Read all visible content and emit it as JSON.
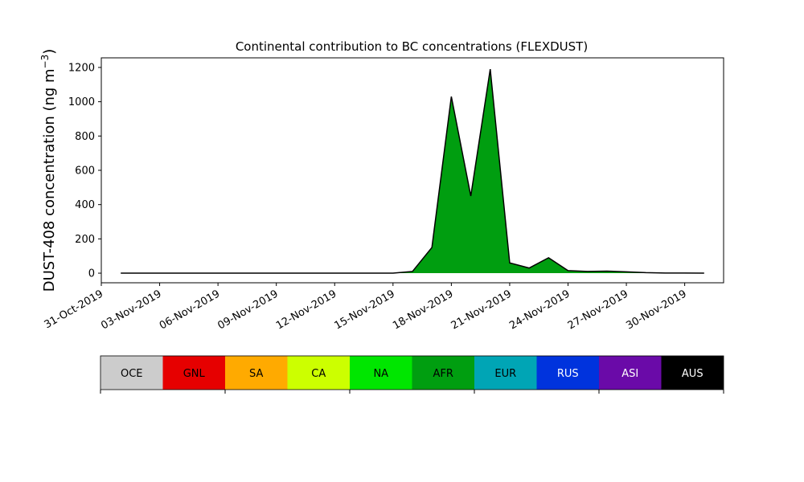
{
  "chart_data": {
    "type": "stacked_area",
    "title": "Continental contribution to BC concentrations (FLEXDUST)",
    "ylabel": {
      "text": "DUST-408 concentration (ng m",
      "superscript": "−3",
      "suffix": ")"
    },
    "x": [
      "2019-11-01",
      "2019-11-02",
      "2019-11-03",
      "2019-11-04",
      "2019-11-05",
      "2019-11-06",
      "2019-11-07",
      "2019-11-08",
      "2019-11-09",
      "2019-11-10",
      "2019-11-11",
      "2019-11-12",
      "2019-11-13",
      "2019-11-14",
      "2019-11-15",
      "2019-11-16",
      "2019-11-17",
      "2019-11-18",
      "2019-11-19",
      "2019-11-20",
      "2019-11-21",
      "2019-11-22",
      "2019-11-23",
      "2019-11-24",
      "2019-11-25",
      "2019-11-26",
      "2019-11-27",
      "2019-11-28",
      "2019-11-29",
      "2019-11-30",
      "2019-12-01"
    ],
    "series": [
      {
        "name": "OCE",
        "color": "#cccccc",
        "values": [
          0,
          0,
          0,
          0,
          0,
          0,
          0,
          0,
          0,
          0,
          0,
          0,
          0,
          0,
          0,
          0,
          0,
          0,
          0,
          0,
          0,
          0,
          0,
          0,
          0,
          0,
          0,
          0,
          0,
          0,
          0
        ]
      },
      {
        "name": "GNL",
        "color": "#e60000",
        "values": [
          0,
          0,
          0,
          0,
          0,
          0,
          0,
          0,
          0,
          0,
          0,
          0,
          0,
          0,
          0,
          0,
          0,
          0,
          0,
          0,
          0,
          0,
          0,
          0,
          0,
          0,
          0,
          0,
          0,
          0,
          0
        ]
      },
      {
        "name": "SA",
        "color": "#ffaa00",
        "values": [
          0,
          0,
          0,
          0,
          0,
          0,
          0,
          0,
          0,
          0,
          0,
          0,
          0,
          0,
          0,
          0,
          0,
          0,
          0,
          0,
          0,
          0,
          0,
          0,
          0,
          0,
          0,
          0,
          0,
          0,
          0
        ]
      },
      {
        "name": "CA",
        "color": "#ccff00",
        "values": [
          0,
          0,
          0,
          0,
          0,
          0,
          0,
          0,
          0,
          0,
          0,
          0,
          0,
          0,
          0,
          0,
          0,
          0,
          0,
          0,
          0,
          0,
          0,
          0,
          0,
          0,
          0,
          0,
          0,
          0,
          0
        ]
      },
      {
        "name": "NA",
        "color": "#00e600",
        "values": [
          0,
          0,
          0,
          0,
          0,
          0,
          0,
          0,
          0,
          0,
          0,
          0,
          0,
          0,
          0,
          0,
          0,
          0,
          0,
          0,
          0,
          0,
          0,
          0,
          0,
          0,
          0,
          0,
          0,
          0,
          0
        ]
      },
      {
        "name": "AFR",
        "color": "#009e10",
        "values": [
          0,
          0,
          0,
          0,
          0,
          0,
          0,
          0,
          0,
          0,
          0,
          0,
          0,
          0,
          0,
          10,
          150,
          1030,
          450,
          1190,
          60,
          30,
          90,
          15,
          10,
          12,
          8,
          3,
          1,
          1,
          0
        ]
      },
      {
        "name": "EUR",
        "color": "#00a5b5",
        "values": [
          0,
          0,
          0,
          0,
          0,
          0,
          0,
          0,
          0,
          0,
          0,
          0,
          0,
          0,
          0,
          0,
          0,
          0,
          0,
          0,
          0,
          0,
          0,
          0,
          0,
          0,
          0,
          0,
          0,
          0,
          0
        ]
      },
      {
        "name": "RUS",
        "color": "#0033dd",
        "values": [
          0,
          0,
          0,
          0,
          0,
          0,
          0,
          0,
          0,
          0,
          0,
          0,
          0,
          0,
          0,
          0,
          0,
          0,
          0,
          0,
          0,
          0,
          0,
          0,
          0,
          0,
          0,
          0,
          0,
          0,
          0
        ]
      },
      {
        "name": "ASI",
        "color": "#6a0aa8",
        "values": [
          0,
          0,
          0,
          0,
          0,
          0,
          0,
          0,
          0,
          0,
          0,
          0,
          0,
          0,
          0,
          0,
          0,
          0,
          0,
          0,
          0,
          0,
          0,
          0,
          0,
          0,
          0,
          0,
          0,
          0,
          0
        ]
      },
      {
        "name": "AUS",
        "color": "#000000",
        "values": [
          0,
          0,
          0,
          0,
          0,
          0,
          0,
          0,
          0,
          0,
          0,
          0,
          0,
          0,
          0,
          0,
          0,
          0,
          0,
          0,
          0,
          0,
          0,
          0,
          0,
          0,
          0,
          0,
          0,
          0,
          0
        ]
      }
    ],
    "xlim": [
      "2019-10-31",
      "2019-12-02"
    ],
    "xticks": [
      {
        "value": "2019-10-31",
        "label": "31-Oct-2019"
      },
      {
        "value": "2019-11-03",
        "label": "03-Nov-2019"
      },
      {
        "value": "2019-11-06",
        "label": "06-Nov-2019"
      },
      {
        "value": "2019-11-09",
        "label": "09-Nov-2019"
      },
      {
        "value": "2019-11-12",
        "label": "12-Nov-2019"
      },
      {
        "value": "2019-11-15",
        "label": "15-Nov-2019"
      },
      {
        "value": "2019-11-18",
        "label": "18-Nov-2019"
      },
      {
        "value": "2019-11-21",
        "label": "21-Nov-2019"
      },
      {
        "value": "2019-11-24",
        "label": "24-Nov-2019"
      },
      {
        "value": "2019-11-27",
        "label": "27-Nov-2019"
      },
      {
        "value": "2019-11-30",
        "label": "30-Nov-2019"
      }
    ],
    "ylim": [
      -56,
      1256
    ],
    "yticks": [
      0,
      200,
      400,
      600,
      800,
      1000,
      1200
    ],
    "grid": false
  }
}
